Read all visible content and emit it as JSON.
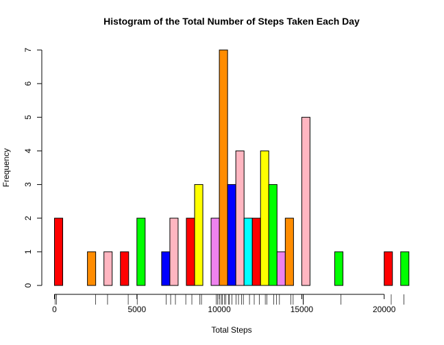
{
  "chart_data": {
    "type": "bar",
    "title": "Histogram of the Total Number of Steps Taken Each Day",
    "xlabel": "Total Steps",
    "ylabel": "Frequency",
    "bin_width": 500,
    "x_bin_starts": [
      0,
      500,
      1000,
      1500,
      2000,
      2500,
      3000,
      3500,
      4000,
      4500,
      5000,
      5500,
      6000,
      6500,
      7000,
      7500,
      8000,
      8500,
      9000,
      9500,
      10000,
      10500,
      11000,
      11500,
      12000,
      12500,
      13000,
      13500,
      14000,
      14500,
      15000,
      15500,
      16000,
      16500,
      17000,
      17500,
      18000,
      18500,
      19000,
      19500,
      20000,
      20500,
      21000
    ],
    "values": [
      2,
      0,
      0,
      0,
      1,
      0,
      1,
      0,
      1,
      0,
      2,
      0,
      0,
      1,
      2,
      0,
      2,
      3,
      0,
      2,
      7,
      3,
      4,
      2,
      2,
      4,
      3,
      1,
      2,
      0,
      5,
      0,
      0,
      0,
      1,
      0,
      0,
      0,
      0,
      0,
      1,
      0,
      1
    ],
    "bar_colors": [
      "#ff0000",
      "#00ffff",
      "#0000ff",
      "#ffff00",
      "#ff8c00",
      "#ffb6c1",
      "#ffb6c1",
      "#00ff00",
      "#ff0000",
      "#ffff00",
      "#00ff00",
      "#ff8c00",
      "#ff0000",
      "#0000ff",
      "#ffb6c1",
      "#ffff00",
      "#ff0000",
      "#ffff00",
      "#00ff00",
      "#ee82ee",
      "#ff8c00",
      "#0000ff",
      "#ffb6c1",
      "#00ffff",
      "#ff0000",
      "#ffff00",
      "#00ff00",
      "#ee82ee",
      "#ff8c00",
      "#ff8c00",
      "#ffb6c1",
      "#0000ff",
      "#ffff00",
      "#ffb6c1",
      "#00ff00",
      "#ff0000",
      "#00ffff",
      "#00ffff",
      "#ffff00",
      "#ff8c00",
      "#ff0000",
      "#0000ff",
      "#00ff00"
    ],
    "xlim": [
      0,
      21500
    ],
    "ylim": [
      0,
      7
    ],
    "x_ticks": [
      0,
      5000,
      10000,
      15000,
      20000
    ],
    "x_tick_labels": [
      "0",
      "5000",
      "10000",
      "15000",
      "20000"
    ],
    "y_ticks": [
      0,
      1,
      2,
      3,
      4,
      5,
      6,
      7
    ],
    "y_tick_labels": [
      "0",
      "1",
      "2",
      "3",
      "4",
      "5",
      "6",
      "7"
    ],
    "rug": [
      41,
      126,
      2492,
      3219,
      4472,
      5018,
      6778,
      7047,
      7336,
      7965,
      8334,
      8821,
      8918,
      9819,
      9900,
      10000,
      10119,
      10183,
      10304,
      10395,
      10571,
      10600,
      10765,
      11015,
      11162,
      11352,
      11458,
      11829,
      12116,
      12426,
      12787,
      12883,
      13294,
      13460,
      13646,
      14339,
      14478,
      15084,
      15098,
      17382,
      20427,
      21194
    ],
    "grid": false,
    "legend": "none"
  }
}
